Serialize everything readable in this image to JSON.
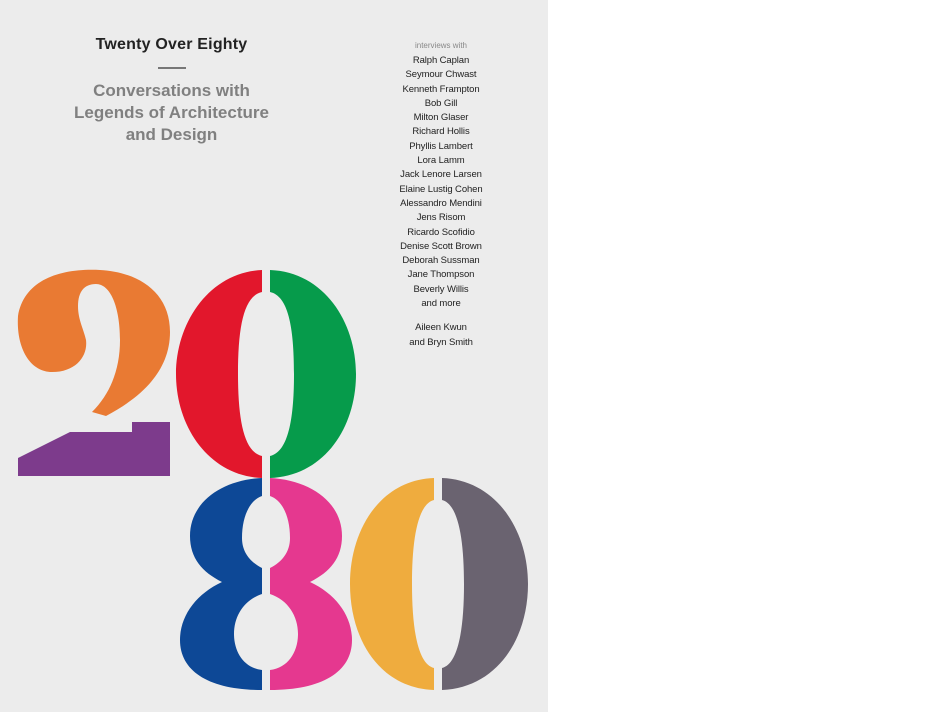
{
  "book": {
    "title": "Twenty Over Eighty",
    "subtitle_lines": [
      "Conversations with",
      "Legends of Architecture",
      "and Design"
    ],
    "intro": "interviews with",
    "interviewees": [
      "Ralph Caplan",
      "Seymour Chwast",
      "Kenneth Frampton",
      "Bob Gill",
      "Milton Glaser",
      "Richard Hollis",
      "Phyllis Lambert",
      "Lora Lamm",
      "Jack Lenore Larsen",
      "Elaine Lustig Cohen",
      "Alessandro Mendini",
      "Jens Risom",
      "Ricardo Scofidio",
      "Denise Scott Brown",
      "Deborah Sussman",
      "Jane Thompson",
      "Beverly Willis",
      "and more"
    ],
    "authors": [
      "Aileen Kwun",
      "and Bryn Smith"
    ]
  },
  "colors": {
    "background": "#ececec",
    "orange": "#e97a33",
    "purple": "#7d3b8c",
    "red": "#e2172c",
    "green": "#069b4b",
    "blue": "#0d4896",
    "pink": "#e5388f",
    "yellow": "#efac3e",
    "gray": "#6a6370"
  }
}
